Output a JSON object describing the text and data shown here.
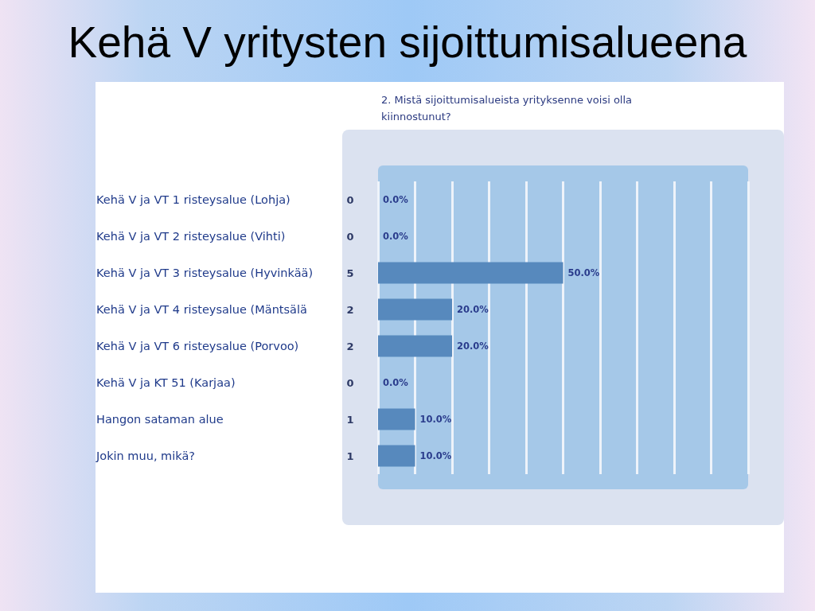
{
  "chart_data": {
    "type": "bar",
    "orientation": "horizontal",
    "title": "Kehä V yritysten sijoittumisalueena",
    "subtitle": "2. Mistä sijoittumisalueista yrityksenne voisi olla kiinnostunut?",
    "categories": [
      "Kehä V ja VT 1 risteysalue (Lohja)",
      "Kehä V ja VT 2 risteysalue (Vihti)",
      "Kehä V ja VT 3 risteysalue (Hyvinkää)",
      "Kehä V ja VT 4 risteysalue (Mäntsälä",
      "Kehä V ja VT 6 risteysalue (Porvoo)",
      "Kehä V ja KT 51 (Karjaa)",
      "Hangon sataman alue",
      "Jokin muu, mikä?"
    ],
    "y2_categories": [
      "0",
      "0",
      "5",
      "2",
      "2",
      "0",
      "1",
      "1"
    ],
    "values": [
      0,
      0,
      50,
      20,
      20,
      0,
      10,
      10
    ],
    "value_labels": [
      "0.0%",
      "0.0%",
      "50.0%",
      "20.0%",
      "20.0%",
      "0.0%",
      "10.0%",
      "10.0%"
    ],
    "color": "#5789bd",
    "xlim": [
      0,
      100
    ],
    "xticks": [
      {
        "value": 0,
        "label": null
      },
      {
        "value": 10,
        "label": null
      },
      {
        "value": 20,
        "label": null
      },
      {
        "value": 30,
        "label": null
      },
      {
        "value": 40,
        "label": null
      },
      {
        "value": 50,
        "label": null
      },
      {
        "value": 60,
        "label": null
      },
      {
        "value": 70,
        "label": null
      },
      {
        "value": 80,
        "label": null
      },
      {
        "value": 90,
        "label": null
      },
      {
        "value": 100,
        "label": null
      }
    ],
    "grid": "x",
    "tick_labels": "y"
  }
}
